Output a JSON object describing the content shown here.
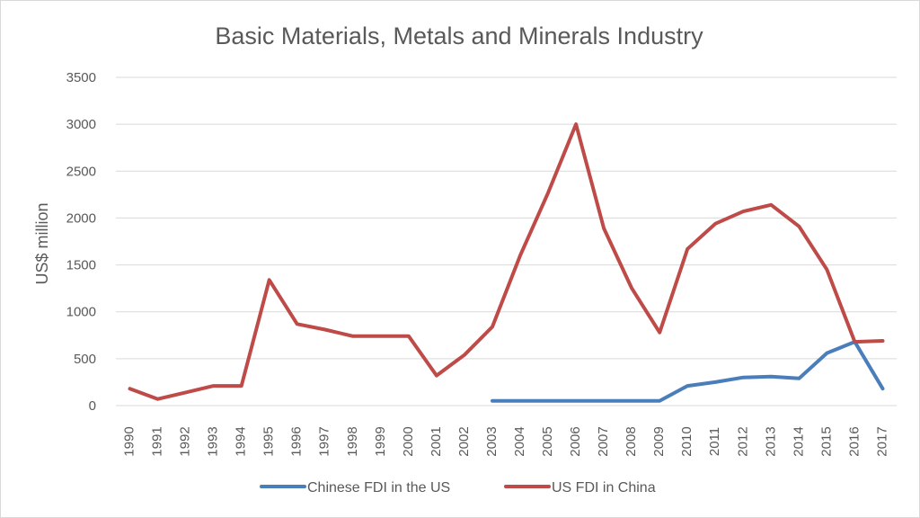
{
  "chart_data": {
    "type": "line",
    "title": "Basic Materials, Metals and Minerals Industry",
    "xlabel": "",
    "ylabel": "US$ million",
    "ylim": [
      0,
      3500
    ],
    "yticks": [
      0,
      500,
      1000,
      1500,
      2000,
      2500,
      3000,
      3500
    ],
    "grid": true,
    "legend_position": "bottom",
    "categories": [
      "1990",
      "1991",
      "1992",
      "1993",
      "1994",
      "1995",
      "1996",
      "1997",
      "1998",
      "1999",
      "2000",
      "2001",
      "2002",
      "2003",
      "2004",
      "2005",
      "2006",
      "2007",
      "2008",
      "2009",
      "2010",
      "2011",
      "2012",
      "2013",
      "2014",
      "2015",
      "2016",
      "2017"
    ],
    "series": [
      {
        "name": "Chinese FDI in the US",
        "color": "#4a7ebb",
        "values": [
          null,
          null,
          null,
          null,
          null,
          null,
          null,
          null,
          null,
          null,
          null,
          null,
          null,
          50,
          50,
          50,
          50,
          50,
          50,
          50,
          210,
          250,
          300,
          310,
          290,
          560,
          680,
          180
        ]
      },
      {
        "name": "US FDI in China",
        "color": "#be4b48",
        "values": [
          180,
          70,
          140,
          210,
          210,
          1340,
          870,
          810,
          740,
          740,
          740,
          320,
          540,
          840,
          1600,
          2270,
          3000,
          1890,
          1250,
          780,
          1670,
          1940,
          2070,
          2140,
          1910,
          1450,
          680,
          690
        ]
      }
    ]
  }
}
